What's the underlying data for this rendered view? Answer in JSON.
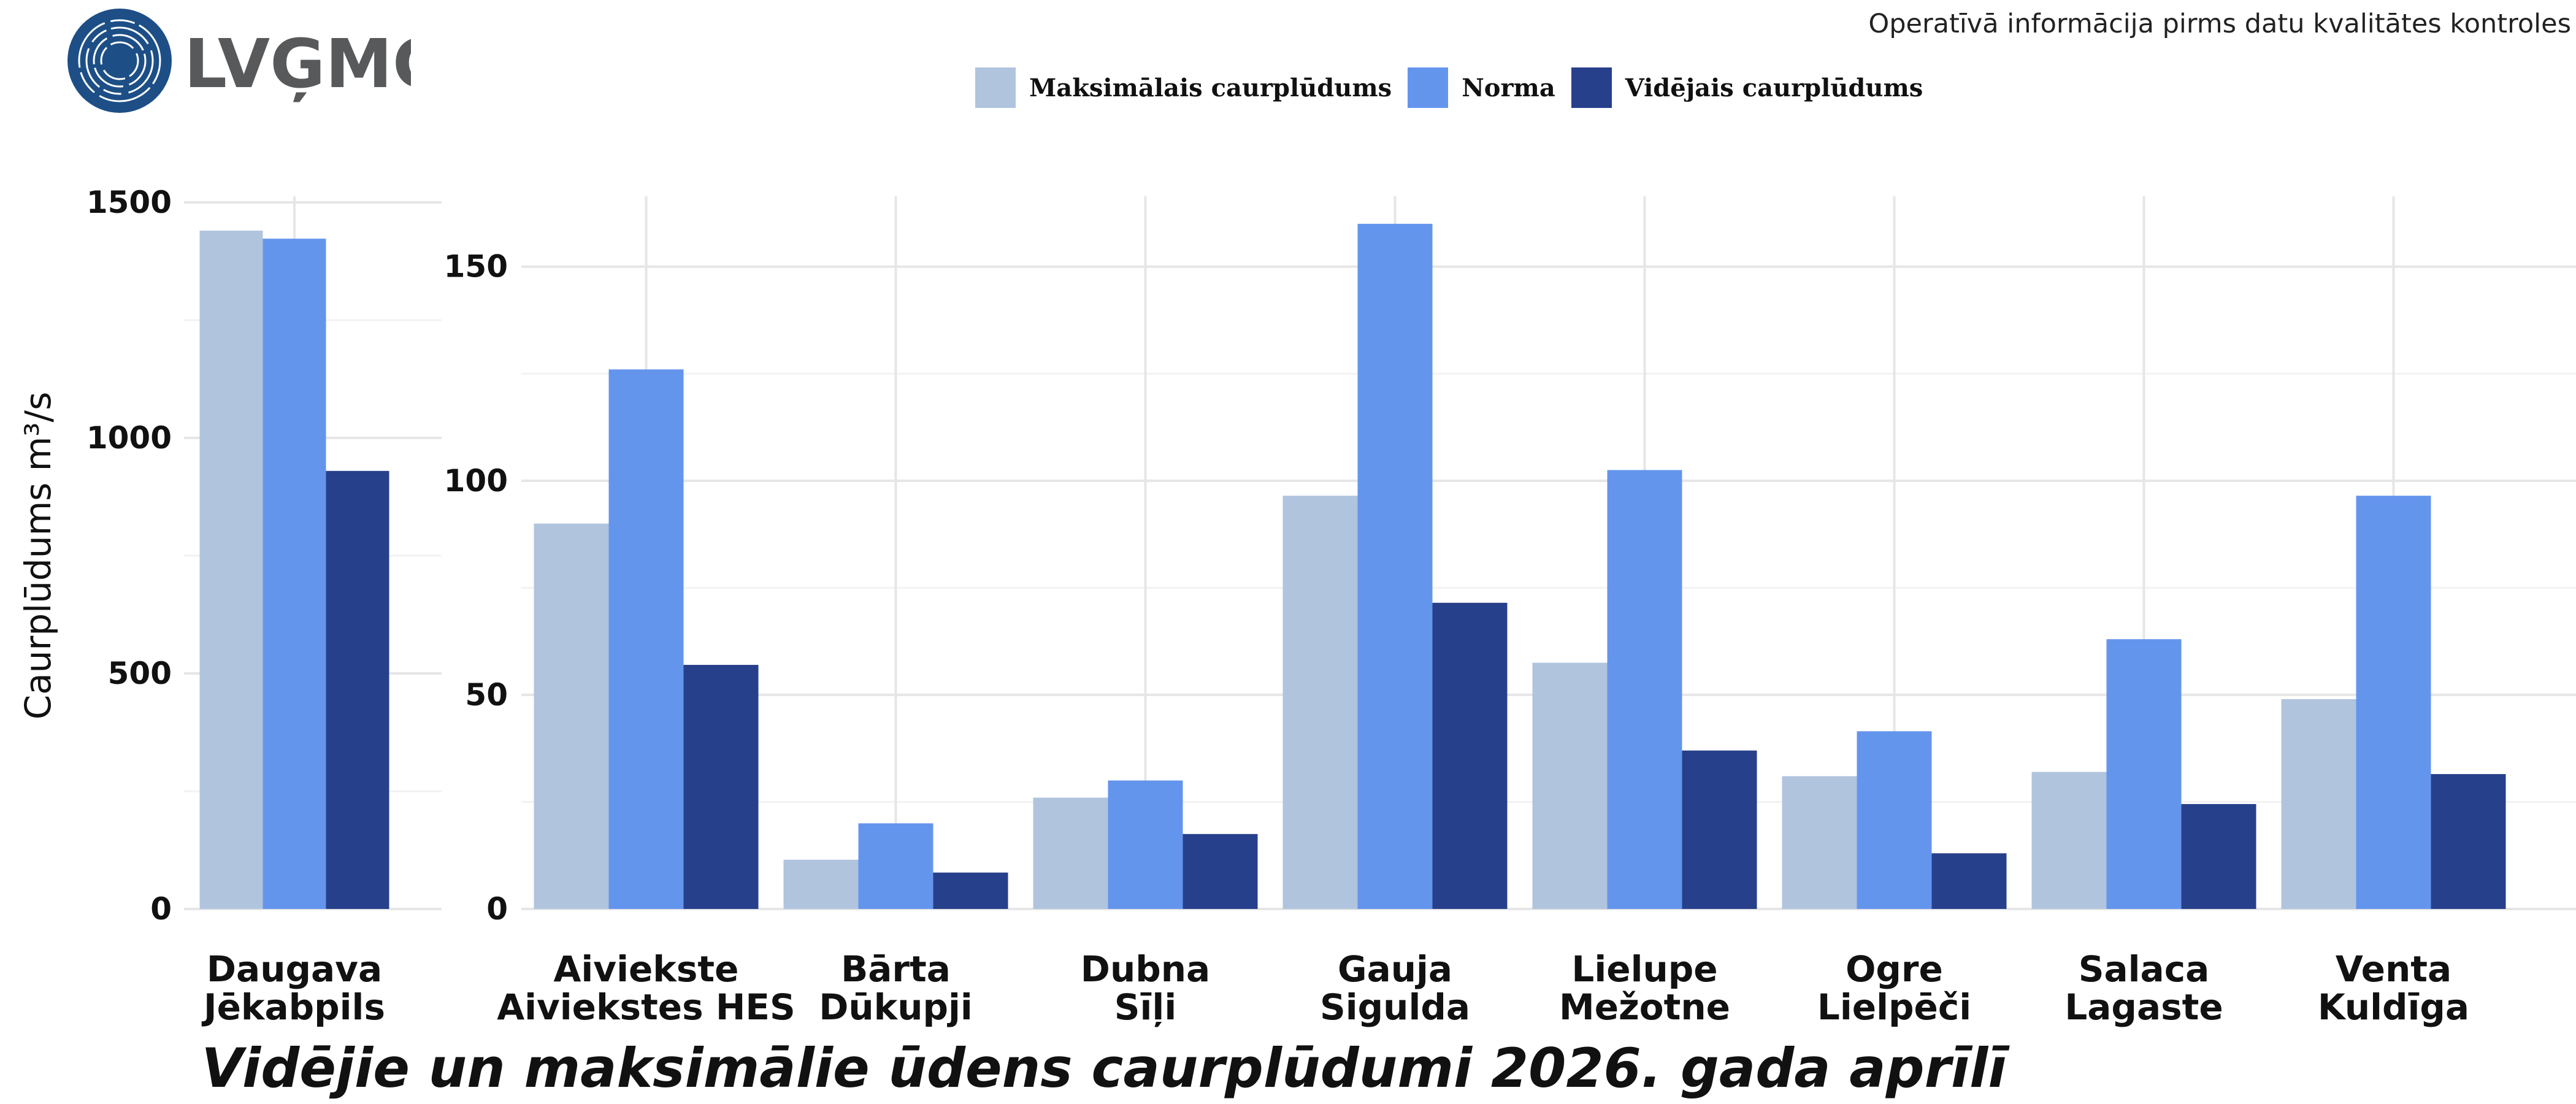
{
  "header": {
    "logo_text": "LVĢMC",
    "note": "Operatīvā informācija pirms datu kvalitātes kontroles"
  },
  "legend": [
    {
      "label": "Maksimālais caurplūdums",
      "color": "#b0c4de"
    },
    {
      "label": "Norma",
      "color": "#6495ed"
    },
    {
      "label": "Vidējais caurplūdums",
      "color": "#27408b"
    }
  ],
  "chart_data": [
    {
      "type": "bar",
      "title": "Vidējie un maksimālie ūdens caurplūdumi 2026. gada aprīlī",
      "ylabel": "Caurplūdums m³/s",
      "ylim": [
        0,
        1500
      ],
      "yticks": [
        "0",
        "500",
        "1000",
        "1500"
      ],
      "grid": true,
      "legend_position": "top",
      "categories": [
        "Daugava\nJēkabpils"
      ],
      "series": [
        {
          "name": "Maksimālais caurplūdums",
          "values": [
            1440
          ]
        },
        {
          "name": "Norma",
          "values": [
            1423
          ]
        },
        {
          "name": "Vidējais caurplūdums",
          "values": [
            930
          ]
        }
      ]
    },
    {
      "type": "bar",
      "ylim": [
        0,
        165
      ],
      "yticks": [
        "0",
        "50",
        "100",
        "150"
      ],
      "grid": true,
      "categories": [
        "Aiviekste\nAiviekstes HES",
        "Bārta\nDūkupji",
        "Dubna\nSīļi",
        "Gauja\nSigulda",
        "Lielupe\nMežotne",
        "Ogre\nLielpēči",
        "Salaca\nLagaste",
        "Venta\nKuldīga"
      ],
      "series": [
        {
          "name": "Maksimālais caurplūdums",
          "values": [
            90,
            11.5,
            26,
            96.5,
            57.5,
            31,
            32,
            49
          ]
        },
        {
          "name": "Norma",
          "values": [
            126,
            20,
            30,
            160,
            102.5,
            41.5,
            63,
            96.5
          ]
        },
        {
          "name": "Vidējais caurplūdums",
          "values": [
            57,
            8.5,
            17.5,
            71.5,
            37,
            13,
            24.5,
            31.5
          ]
        }
      ]
    }
  ]
}
